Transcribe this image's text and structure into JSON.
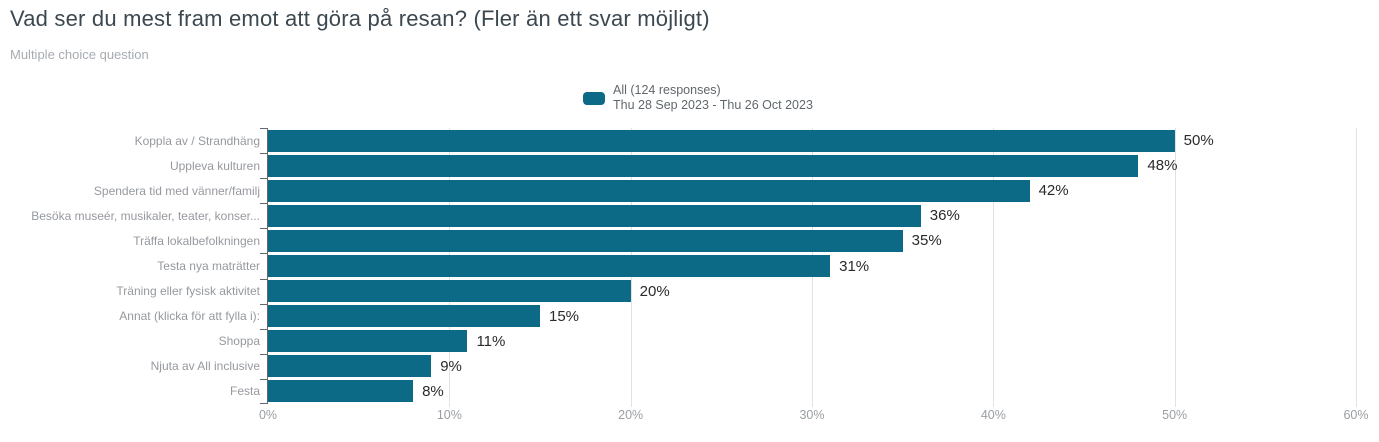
{
  "header": {
    "title": "Vad ser du mest fram emot att göra på resan? (Fler än ett svar möjligt)",
    "subtitle": "Multiple choice question"
  },
  "legend": {
    "series_label": "All (124 responses)",
    "date_range": "Thu 28 Sep 2023 - Thu 26 Oct 2023",
    "swatch_color": "#0d6a87"
  },
  "chart_data": {
    "type": "bar",
    "orientation": "horizontal",
    "title": "Vad ser du mest fram emot att göra på resan? (Fler än ett svar möjligt)",
    "series_name": "All (124 responses)",
    "categories": [
      "Koppla av / Strandhäng",
      "Uppleva kulturen",
      "Spendera tid med vänner/familj",
      "Besöka museér, musikaler, teater, konser...",
      "Träffa lokalbefolkningen",
      "Testa nya maträtter",
      "Träning eller fysisk aktivitet",
      "Annat (klicka för att fylla i):",
      "Shoppa",
      "Njuta av All inclusive",
      "Festa"
    ],
    "values": [
      50,
      48,
      42,
      36,
      35,
      31,
      20,
      15,
      11,
      9,
      8
    ],
    "value_suffix": "%",
    "xlim": [
      0,
      60
    ],
    "x_ticks": [
      "0%",
      "10%",
      "20%",
      "30%",
      "40%",
      "50%",
      "60%"
    ],
    "x_tick_values": [
      0,
      10,
      20,
      30,
      40,
      50,
      60
    ],
    "grid": true,
    "legend_position": "top-center",
    "bar_color": "#0d6a87"
  },
  "colors": {
    "bar": "#0d6a87",
    "title": "#3c4850",
    "subtitle": "#a7acb1",
    "category_label": "#95999e",
    "value_label": "#2a2a2a",
    "axis_tick_label": "#999fa4",
    "gridline": "#dde4e9",
    "axis_line": "#63686c",
    "background": "#ffffff"
  }
}
